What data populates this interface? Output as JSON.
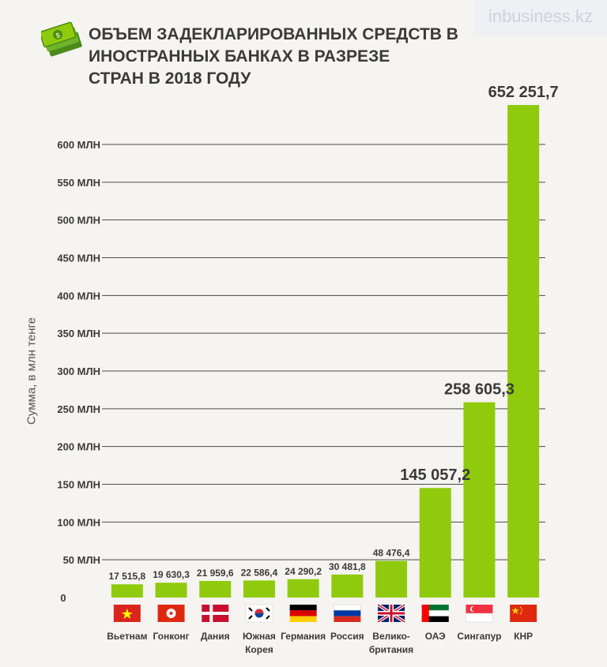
{
  "header": {
    "title_lines": [
      "ОБЪЕМ ЗАДЕКЛАРИРОВАННЫХ СРЕДСТВ В",
      "ИНОСТРАННЫХ БАНКАХ В РАЗРЕЗЕ",
      "СТРАН В 2018 ГОДУ"
    ],
    "logo_text": "inbusiness.kz",
    "icon": "money-stack-icon"
  },
  "colors": {
    "bar": "#8fcb0c",
    "grid": "#4a4a4a",
    "text": "#3a3a3a",
    "background": "#f5f4f0"
  },
  "chart_data": {
    "type": "bar",
    "title": "ОБЪЕМ ЗАДЕКЛАРИРОВАННЫХ СРЕДСТВ В ИНОСТРАННЫХ БАНКАХ В РАЗРЕЗЕ СТРАН В 2018 ГОДУ",
    "ylabel": "Сумма, в млн тенге",
    "xlabel": "",
    "ylim": [
      0,
      600000
    ],
    "yticks": [
      0,
      50000,
      100000,
      150000,
      200000,
      250000,
      300000,
      350000,
      400000,
      450000,
      500000,
      550000,
      600000
    ],
    "ytick_labels": [
      "0",
      "50 МЛН",
      "100 МЛН",
      "150 МЛН",
      "200 МЛН",
      "250 МЛН",
      "300 МЛН",
      "350 МЛН",
      "400 МЛН",
      "450 МЛН",
      "500 МЛН",
      "550 МЛН",
      "600 МЛН"
    ],
    "grid": true,
    "categories": [
      [
        "Вьетнам"
      ],
      [
        "Гонконг"
      ],
      [
        "Дания"
      ],
      [
        "Южная",
        "Корея"
      ],
      [
        "Германия"
      ],
      [
        "Россия"
      ],
      [
        "Велико-",
        "британия"
      ],
      [
        "ОАЭ"
      ],
      [
        "Сингапур"
      ],
      [
        "КНР"
      ]
    ],
    "values": [
      17515.8,
      19630.3,
      21959.6,
      22586.4,
      24290.2,
      30481.8,
      48476.4,
      145057.2,
      258605.3,
      652251.7
    ],
    "value_labels": [
      "17 515,8",
      "19 630,3",
      "21 959,6",
      "22 586,4",
      "24 290,2",
      "30 481,8",
      "48 476,4",
      "145 057,2",
      "258 605,3",
      "652 251,7"
    ],
    "flags": [
      "vietnam-flag",
      "hongkong-flag",
      "denmark-flag",
      "southkorea-flag",
      "germany-flag",
      "russia-flag",
      "uk-flag",
      "uae-flag",
      "singapore-flag",
      "china-flag"
    ]
  }
}
